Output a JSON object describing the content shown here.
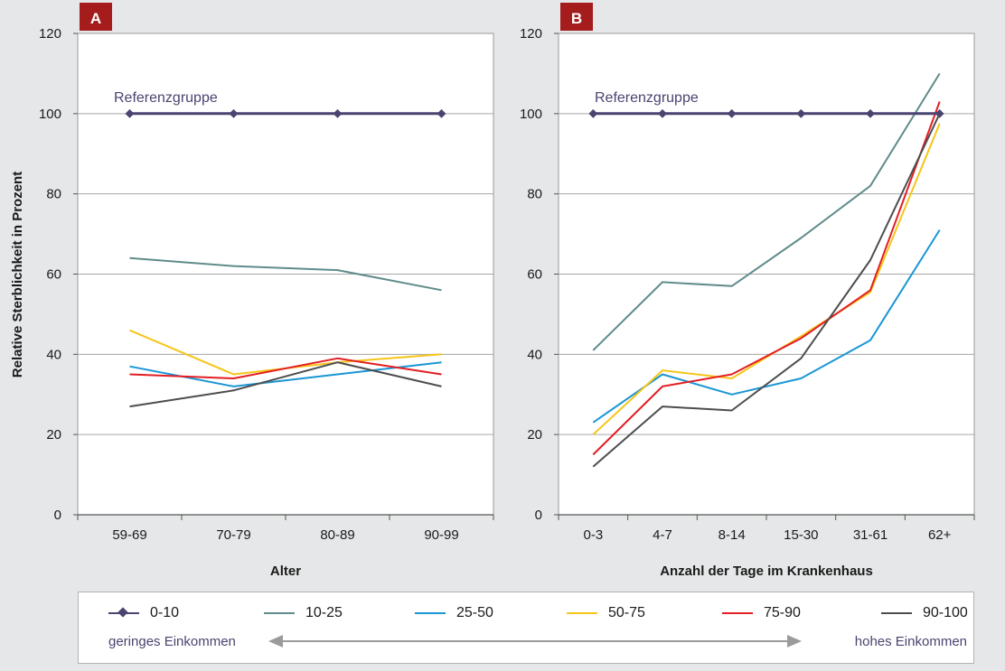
{
  "chart_data": [
    {
      "type": "line",
      "panel_label": "A",
      "xlabel": "Alter",
      "ylabel": "Relative Sterblichkeit in Prozent",
      "ylim": [
        0,
        120
      ],
      "yticks": [
        0,
        20,
        40,
        60,
        80,
        100,
        120
      ],
      "categories": [
        "59-69",
        "70-79",
        "80-89",
        "90-99"
      ],
      "annotation": "Referenzgruppe",
      "grid": true,
      "series": [
        {
          "name": "0-10",
          "values": [
            100,
            100,
            100,
            100
          ]
        },
        {
          "name": "10-25",
          "values": [
            64,
            62,
            61,
            56
          ]
        },
        {
          "name": "25-50",
          "values": [
            37,
            32,
            35,
            38
          ]
        },
        {
          "name": "50-75",
          "values": [
            46,
            35,
            38,
            40
          ]
        },
        {
          "name": "75-90",
          "values": [
            35,
            34,
            39,
            35
          ]
        },
        {
          "name": "90-100",
          "values": [
            27,
            31,
            38,
            32
          ]
        }
      ]
    },
    {
      "type": "line",
      "panel_label": "B",
      "xlabel": "Anzahl der Tage im Krankenhaus",
      "ylabel": "",
      "ylim": [
        0,
        120
      ],
      "yticks": [
        0,
        20,
        40,
        60,
        80,
        100,
        120
      ],
      "categories": [
        "0-3",
        "4-7",
        "8-14",
        "15-30",
        "31-61",
        "62+"
      ],
      "annotation": "Referenzgruppe",
      "grid": true,
      "series": [
        {
          "name": "0-10",
          "values": [
            100,
            100,
            100,
            100,
            100,
            100
          ]
        },
        {
          "name": "10-25",
          "values": [
            41,
            58,
            57,
            69,
            82,
            110
          ]
        },
        {
          "name": "25-50",
          "values": [
            23,
            35,
            30,
            34,
            43.5,
            71
          ]
        },
        {
          "name": "50-75",
          "values": [
            20,
            36,
            34,
            44.5,
            55.5,
            97.5
          ]
        },
        {
          "name": "75-90",
          "values": [
            15,
            32,
            35,
            44,
            56,
            103
          ]
        },
        {
          "name": "90-100",
          "values": [
            12,
            27,
            26,
            39,
            63.5,
            100
          ]
        }
      ]
    }
  ],
  "legend": {
    "items": [
      {
        "label": "0-10",
        "color": "#4a4470",
        "marker": "diamond"
      },
      {
        "label": "10-25",
        "color": "#5f8c8b",
        "marker": "none"
      },
      {
        "label": "25-50",
        "color": "#1a96d4",
        "marker": "none"
      },
      {
        "label": "50-75",
        "color": "#f5c518",
        "marker": "none"
      },
      {
        "label": "75-90",
        "color": "#e31e24",
        "marker": "none"
      },
      {
        "label": "90-100",
        "color": "#4d4d4f",
        "marker": "none"
      }
    ],
    "left_label": "geringes Einkommen",
    "right_label": "hohes Einkommen"
  },
  "colors": {
    "panel_tag": "#a51c1c",
    "grid": "#a6a6a6",
    "axis": "#555555",
    "background": "#e6e7e8",
    "plot_area": "#ffffff",
    "arrow": "#9b9b9b"
  }
}
